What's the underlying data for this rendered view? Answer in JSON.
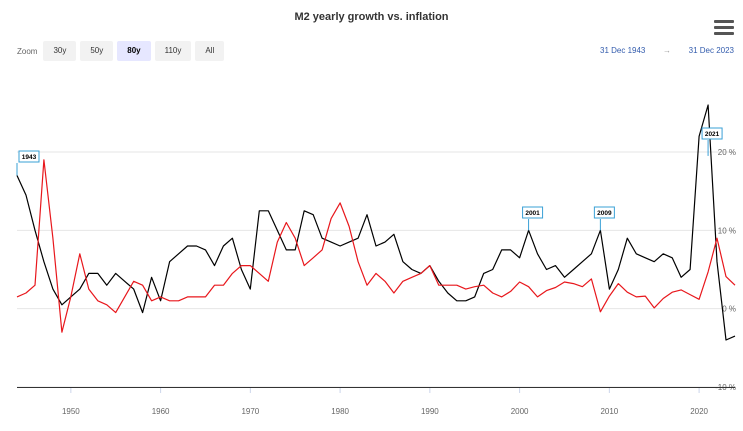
{
  "header": {
    "title": "M2 yearly growth vs. inflation"
  },
  "toolbar": {
    "zoom_label": "Zoom",
    "zoom_buttons": [
      "30y",
      "50y",
      "80y",
      "110y",
      "All"
    ],
    "active_zoom": "80y",
    "range_from": "31 Dec 1943",
    "range_arrow": "→",
    "range_to": "31 Dec 2023",
    "menu_icon": "hamburger-menu-icon"
  },
  "chart_data": {
    "type": "line",
    "title": "M2 yearly growth vs. inflation",
    "x_ticks": [
      "1950",
      "1960",
      "1970",
      "1980",
      "1990",
      "2000",
      "2010",
      "2020"
    ],
    "y_ticks": [
      "20 %",
      "10 %",
      "0 %",
      "-10 %"
    ],
    "xlim": [
      1944,
      2024
    ],
    "ylim": [
      -10,
      20
    ],
    "grid": true,
    "series": [
      {
        "color": "#000000",
        "points": [
          [
            1944,
            17.0
          ],
          [
            1945,
            14.5
          ],
          [
            1946,
            10.0
          ],
          [
            1947,
            6.0
          ],
          [
            1948,
            2.5
          ],
          [
            1949,
            0.5
          ],
          [
            1950,
            1.5
          ],
          [
            1951,
            2.5
          ],
          [
            1952,
            4.5
          ],
          [
            1953,
            4.5
          ],
          [
            1954,
            3.0
          ],
          [
            1955,
            4.5
          ],
          [
            1956,
            3.5
          ],
          [
            1957,
            2.5
          ],
          [
            1958,
            -0.5
          ],
          [
            1959,
            4.0
          ],
          [
            1960,
            1.0
          ],
          [
            1961,
            6.0
          ],
          [
            1962,
            7.0
          ],
          [
            1963,
            8.0
          ],
          [
            1964,
            8.0
          ],
          [
            1965,
            7.5
          ],
          [
            1966,
            5.5
          ],
          [
            1967,
            8.0
          ],
          [
            1968,
            9.0
          ],
          [
            1969,
            5.0
          ],
          [
            1970,
            2.5
          ],
          [
            1971,
            12.5
          ],
          [
            1972,
            12.5
          ],
          [
            1973,
            10.0
          ],
          [
            1974,
            7.5
          ],
          [
            1975,
            7.5
          ],
          [
            1976,
            12.5
          ],
          [
            1977,
            12.0
          ],
          [
            1978,
            9.0
          ],
          [
            1979,
            8.5
          ],
          [
            1980,
            8.0
          ],
          [
            1981,
            8.5
          ],
          [
            1982,
            9.0
          ],
          [
            1983,
            12.0
          ],
          [
            1984,
            8.0
          ],
          [
            1985,
            8.5
          ],
          [
            1986,
            9.5
          ],
          [
            1987,
            6.0
          ],
          [
            1988,
            5.0
          ],
          [
            1989,
            4.5
          ],
          [
            1990,
            5.5
          ],
          [
            1991,
            3.5
          ],
          [
            1992,
            2.0
          ],
          [
            1993,
            1.0
          ],
          [
            1994,
            1.0
          ],
          [
            1995,
            1.5
          ],
          [
            1996,
            4.5
          ],
          [
            1997,
            5.0
          ],
          [
            1998,
            7.5
          ],
          [
            1999,
            7.5
          ],
          [
            2000,
            6.5
          ],
          [
            2001,
            10.0
          ],
          [
            2002,
            7.0
          ],
          [
            2003,
            5.0
          ],
          [
            2004,
            5.5
          ],
          [
            2005,
            4.0
          ],
          [
            2006,
            5.0
          ],
          [
            2007,
            6.0
          ],
          [
            2008,
            7.0
          ],
          [
            2009,
            10.0
          ],
          [
            2010,
            2.5
          ],
          [
            2011,
            5.0
          ],
          [
            2012,
            9.0
          ],
          [
            2013,
            7.0
          ],
          [
            2014,
            6.5
          ],
          [
            2015,
            6.0
          ],
          [
            2016,
            7.0
          ],
          [
            2017,
            6.5
          ],
          [
            2018,
            4.0
          ],
          [
            2019,
            5.0
          ],
          [
            2020,
            22.0
          ],
          [
            2021,
            26.0
          ],
          [
            2022,
            6.0
          ],
          [
            2023,
            -4.0
          ],
          [
            2024,
            -3.5
          ]
        ]
      },
      {
        "color": "#e8171c",
        "points": [
          [
            1944,
            1.5
          ],
          [
            1945,
            2.0
          ],
          [
            1946,
            3.0
          ],
          [
            1947,
            19.0
          ],
          [
            1948,
            9.0
          ],
          [
            1949,
            -3.0
          ],
          [
            1950,
            1.5
          ],
          [
            1951,
            7.0
          ],
          [
            1952,
            2.5
          ],
          [
            1953,
            1.0
          ],
          [
            1954,
            0.5
          ],
          [
            1955,
            -0.5
          ],
          [
            1956,
            1.5
          ],
          [
            1957,
            3.5
          ],
          [
            1958,
            3.0
          ],
          [
            1959,
            1.0
          ],
          [
            1960,
            1.5
          ],
          [
            1961,
            1.0
          ],
          [
            1962,
            1.0
          ],
          [
            1963,
            1.5
          ],
          [
            1964,
            1.5
          ],
          [
            1965,
            1.5
          ],
          [
            1966,
            3.0
          ],
          [
            1967,
            3.0
          ],
          [
            1968,
            4.5
          ],
          [
            1969,
            5.5
          ],
          [
            1970,
            5.5
          ],
          [
            1971,
            4.5
          ],
          [
            1972,
            3.5
          ],
          [
            1973,
            8.5
          ],
          [
            1974,
            11.0
          ],
          [
            1975,
            9.0
          ],
          [
            1976,
            5.5
          ],
          [
            1977,
            6.5
          ],
          [
            1978,
            7.5
          ],
          [
            1979,
            11.5
          ],
          [
            1980,
            13.5
          ],
          [
            1981,
            10.5
          ],
          [
            1982,
            6.0
          ],
          [
            1983,
            3.0
          ],
          [
            1984,
            4.5
          ],
          [
            1985,
            3.5
          ],
          [
            1986,
            2.0
          ],
          [
            1987,
            3.5
          ],
          [
            1988,
            4.0
          ],
          [
            1989,
            4.5
          ],
          [
            1990,
            5.5
          ],
          [
            1991,
            3.0
          ],
          [
            1992,
            3.0
          ],
          [
            1993,
            3.0
          ],
          [
            1994,
            2.5
          ],
          [
            1995,
            2.8
          ],
          [
            1996,
            3.0
          ],
          [
            1997,
            2.0
          ],
          [
            1998,
            1.5
          ],
          [
            1999,
            2.2
          ],
          [
            2000,
            3.4
          ],
          [
            2001,
            2.8
          ],
          [
            2002,
            1.5
          ],
          [
            2003,
            2.3
          ],
          [
            2004,
            2.7
          ],
          [
            2005,
            3.4
          ],
          [
            2006,
            3.2
          ],
          [
            2007,
            2.8
          ],
          [
            2008,
            3.8
          ],
          [
            2009,
            -0.4
          ],
          [
            2010,
            1.6
          ],
          [
            2011,
            3.2
          ],
          [
            2012,
            2.1
          ],
          [
            2013,
            1.5
          ],
          [
            2014,
            1.6
          ],
          [
            2015,
            0.1
          ],
          [
            2016,
            1.3
          ],
          [
            2017,
            2.1
          ],
          [
            2018,
            2.4
          ],
          [
            2019,
            1.8
          ],
          [
            2020,
            1.2
          ],
          [
            2021,
            4.7
          ],
          [
            2022,
            9.0
          ],
          [
            2023,
            4.1
          ],
          [
            2024,
            3.0
          ]
        ]
      }
    ],
    "annotations": [
      {
        "label": "1943",
        "x": 1944,
        "y": 17.0
      },
      {
        "label": "2001",
        "x": 2001,
        "y": 10.0
      },
      {
        "label": "2009",
        "x": 2009,
        "y": 10.0
      },
      {
        "label": "2021",
        "x": 2021,
        "y": 19.5
      }
    ]
  }
}
